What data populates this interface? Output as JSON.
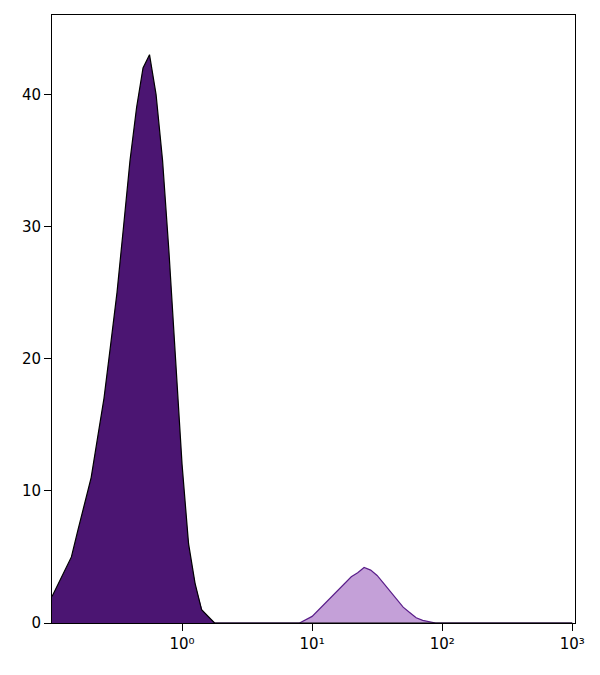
{
  "chart_data": {
    "type": "area",
    "log": "x",
    "grid": false,
    "xlim": [
      0.1,
      1050
    ],
    "xticks": [
      {
        "value": 1,
        "label": "10⁰"
      },
      {
        "value": 10,
        "label": "10¹"
      },
      {
        "value": 100,
        "label": "10²"
      },
      {
        "value": 1000,
        "label": "10³"
      }
    ],
    "ylim": [
      0,
      46
    ],
    "yticks": [
      0,
      10,
      20,
      30,
      40
    ],
    "x": [
      0.1,
      0.112,
      0.126,
      0.141,
      0.158,
      0.178,
      0.2,
      0.224,
      0.251,
      0.282,
      0.316,
      0.355,
      0.398,
      0.447,
      0.501,
      0.562,
      0.631,
      0.708,
      0.794,
      0.891,
      1,
      1.122,
      1.259,
      1.413,
      1.585,
      1.778,
      2,
      3,
      5,
      8,
      10,
      11.2,
      12.6,
      14.1,
      15.8,
      17.8,
      20,
      22.4,
      25.1,
      28.2,
      31.6,
      35.5,
      39.8,
      44.7,
      50.1,
      56.2,
      63.1,
      70.8,
      79.4,
      89.1,
      100,
      200,
      500,
      1000
    ],
    "series": [
      {
        "color": "#c4a0d8",
        "values": [
          1.8,
          2.7,
          3.6,
          4.6,
          6.4,
          8.3,
          10,
          13,
          16,
          19,
          23,
          28,
          32,
          36,
          39,
          40,
          37,
          32,
          26,
          18,
          11,
          5.5,
          2.8,
          1,
          0.4,
          0,
          0,
          0,
          0,
          0,
          0.5,
          1,
          1.5,
          2,
          2.5,
          3,
          3.5,
          3.8,
          4.2,
          4,
          3.6,
          3,
          2.4,
          1.8,
          1.2,
          0.8,
          0.4,
          0.2,
          0.1,
          0,
          0,
          0,
          0,
          0
        ]
      },
      {
        "color": "#4b1572",
        "values": [
          2,
          3,
          4,
          5,
          7,
          9,
          11,
          14,
          17,
          21,
          25,
          30,
          35,
          39,
          42,
          43,
          40,
          35,
          28,
          20,
          12,
          6,
          3,
          1,
          0.5,
          0,
          0,
          0,
          0,
          0,
          0,
          0,
          0,
          0,
          0,
          0,
          0,
          0,
          0,
          0,
          0,
          0,
          0,
          0,
          0,
          0,
          0,
          0,
          0,
          0,
          0,
          0,
          0,
          0
        ]
      }
    ]
  }
}
